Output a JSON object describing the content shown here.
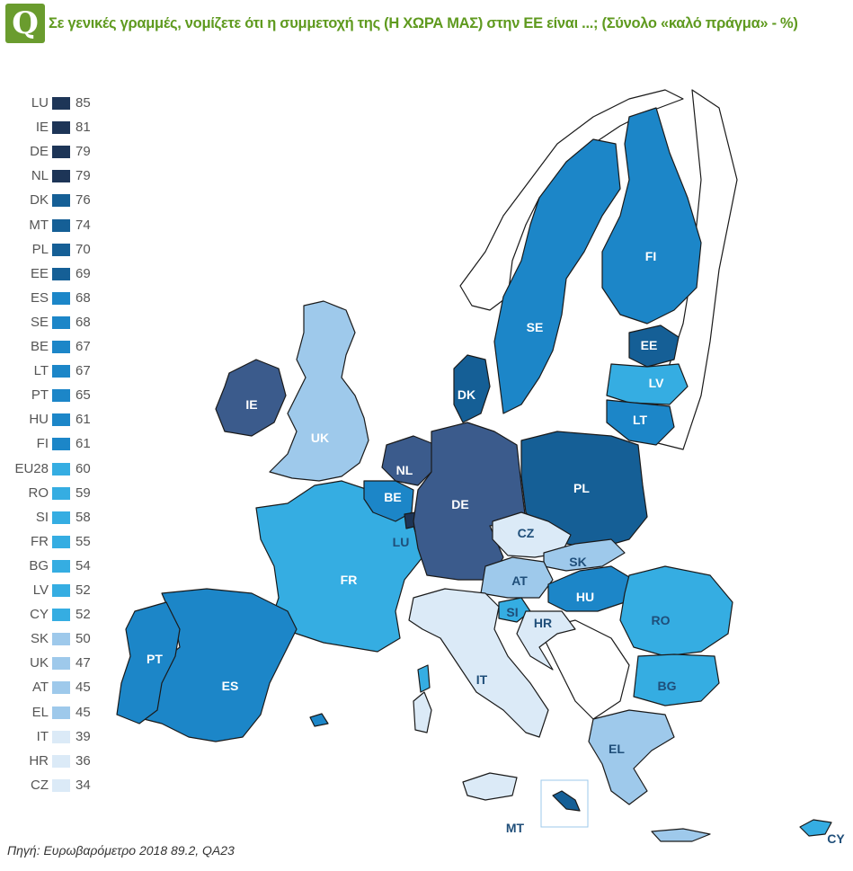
{
  "header": {
    "badge": "Q",
    "title": "Σε γενικές γραμμές, νομίζετε ότι η συμμετοχή της (Η ΧΩΡΑ ΜΑΣ) στην ΕΕ είναι ...; (Σύνολο «καλό πράγμα» - %)"
  },
  "legend": [
    {
      "code": "LU",
      "value": "85",
      "color": "#1d3557"
    },
    {
      "code": "IE",
      "value": "81",
      "color": "#1d3557"
    },
    {
      "code": "DE",
      "value": "79",
      "color": "#1d3557"
    },
    {
      "code": "NL",
      "value": "79",
      "color": "#1d3557"
    },
    {
      "code": "DK",
      "value": "76",
      "color": "#155f96"
    },
    {
      "code": "MT",
      "value": "74",
      "color": "#155f96"
    },
    {
      "code": "PL",
      "value": "70",
      "color": "#155f96"
    },
    {
      "code": "EE",
      "value": "69",
      "color": "#155f96"
    },
    {
      "code": "ES",
      "value": "68",
      "color": "#1c86c8"
    },
    {
      "code": "SE",
      "value": "68",
      "color": "#1c86c8"
    },
    {
      "code": "BE",
      "value": "67",
      "color": "#1c86c8"
    },
    {
      "code": "LT",
      "value": "67",
      "color": "#1c86c8"
    },
    {
      "code": "PT",
      "value": "65",
      "color": "#1c86c8"
    },
    {
      "code": "HU",
      "value": "61",
      "color": "#1c86c8"
    },
    {
      "code": "FI",
      "value": "61",
      "color": "#1c86c8"
    },
    {
      "code": "EU28",
      "value": "60",
      "color": "#35ade2"
    },
    {
      "code": "RO",
      "value": "59",
      "color": "#35ade2"
    },
    {
      "code": "SI",
      "value": "58",
      "color": "#35ade2"
    },
    {
      "code": "FR",
      "value": "55",
      "color": "#35ade2"
    },
    {
      "code": "BG",
      "value": "54",
      "color": "#35ade2"
    },
    {
      "code": "LV",
      "value": "52",
      "color": "#35ade2"
    },
    {
      "code": "CY",
      "value": "52",
      "color": "#35ade2"
    },
    {
      "code": "SK",
      "value": "50",
      "color": "#9ec9eb"
    },
    {
      "code": "UK",
      "value": "47",
      "color": "#9ec9eb"
    },
    {
      "code": "AT",
      "value": "45",
      "color": "#9ec9eb"
    },
    {
      "code": "EL",
      "value": "45",
      "color": "#9ec9eb"
    },
    {
      "code": "IT",
      "value": "39",
      "color": "#dbeaf7"
    },
    {
      "code": "HR",
      "value": "36",
      "color": "#dbeaf7"
    },
    {
      "code": "CZ",
      "value": "34",
      "color": "#dbeaf7"
    }
  ],
  "map_labels": {
    "IE": "IE",
    "UK": "UK",
    "NL": "NL",
    "BE": "BE",
    "LU": "LU",
    "DE": "DE",
    "DK": "DK",
    "SE": "SE",
    "FI": "FI",
    "EE": "EE",
    "LV": "LV",
    "LT": "LT",
    "PL": "PL",
    "CZ": "CZ",
    "SK": "SK",
    "AT": "AT",
    "HU": "HU",
    "SI": "SI",
    "HR": "HR",
    "RO": "RO",
    "BG": "BG",
    "FR": "FR",
    "ES": "ES",
    "PT": "PT",
    "IT": "IT",
    "EL": "EL",
    "MT": "MT",
    "CY": "CY"
  },
  "source": "Πηγή: Ευρωβαρόμετρο 2018 89.2, QA23"
}
